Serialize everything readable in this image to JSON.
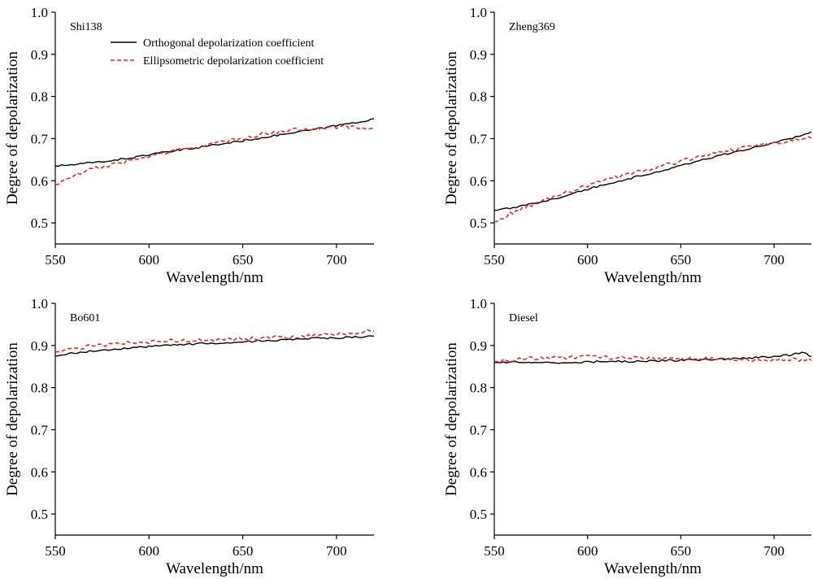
{
  "chart_data": [
    {
      "type": "line",
      "panel_label": "Shi138",
      "xlabel": "Wavelength/nm",
      "ylabel": "Degree of depolarization",
      "xlim": [
        550,
        720
      ],
      "ylim": [
        0.45,
        1.0
      ],
      "xticks": [
        550,
        600,
        650,
        700
      ],
      "yticks": [
        0.5,
        0.6,
        0.7,
        0.8,
        0.9,
        1.0
      ],
      "ytick_labels": [
        "0.5",
        "0.6",
        "0.7",
        "0.8",
        "0.9",
        "1.0"
      ],
      "legend": {
        "placement": "top-left",
        "entries": [
          "Orthogonal depolarization coefficient",
          "Ellipsometric depolarization coefficient"
        ]
      },
      "series": [
        {
          "name": "Orthogonal depolarization coefficient",
          "color": "#000000",
          "style": "solid",
          "x": [
            550,
            560,
            570,
            580,
            590,
            600,
            610,
            620,
            630,
            640,
            650,
            660,
            670,
            680,
            690,
            700,
            710,
            720
          ],
          "y": [
            0.635,
            0.638,
            0.643,
            0.648,
            0.654,
            0.662,
            0.668,
            0.675,
            0.682,
            0.688,
            0.695,
            0.702,
            0.709,
            0.716,
            0.723,
            0.731,
            0.738,
            0.747
          ]
        },
        {
          "name": "Ellipsometric depolarization coefficient",
          "color": "#e8282b",
          "style": "dashed",
          "x": [
            550,
            560,
            570,
            580,
            590,
            600,
            610,
            620,
            630,
            640,
            650,
            660,
            670,
            680,
            690,
            700,
            710,
            720
          ],
          "y": [
            0.59,
            0.612,
            0.628,
            0.638,
            0.648,
            0.658,
            0.667,
            0.676,
            0.684,
            0.692,
            0.701,
            0.71,
            0.717,
            0.722,
            0.726,
            0.728,
            0.727,
            0.725
          ]
        }
      ]
    },
    {
      "type": "line",
      "panel_label": "Zheng369",
      "xlabel": "Wavelength/nm",
      "ylabel": "Degree of depolarization",
      "xlim": [
        550,
        720
      ],
      "ylim": [
        0.45,
        1.0
      ],
      "xticks": [
        550,
        600,
        650,
        700
      ],
      "yticks": [
        0.5,
        0.6,
        0.7,
        0.8,
        0.9,
        1.0
      ],
      "ytick_labels": [
        "0.5",
        "0.6",
        "0.7",
        "0.8",
        "0.9",
        "1.0"
      ],
      "series": [
        {
          "name": "Orthogonal depolarization coefficient",
          "color": "#000000",
          "style": "solid",
          "x": [
            550,
            560,
            570,
            580,
            590,
            600,
            610,
            620,
            630,
            640,
            650,
            660,
            670,
            680,
            690,
            700,
            710,
            720
          ],
          "y": [
            0.53,
            0.535,
            0.545,
            0.555,
            0.567,
            0.58,
            0.592,
            0.603,
            0.613,
            0.624,
            0.636,
            0.648,
            0.659,
            0.669,
            0.679,
            0.69,
            0.702,
            0.716
          ]
        },
        {
          "name": "Ellipsometric depolarization coefficient",
          "color": "#e8282b",
          "style": "dashed",
          "x": [
            550,
            560,
            570,
            580,
            590,
            600,
            610,
            620,
            630,
            640,
            650,
            660,
            670,
            680,
            690,
            700,
            710,
            720
          ],
          "y": [
            0.502,
            0.525,
            0.543,
            0.558,
            0.573,
            0.588,
            0.601,
            0.613,
            0.624,
            0.635,
            0.647,
            0.658,
            0.667,
            0.675,
            0.683,
            0.69,
            0.696,
            0.702
          ]
        }
      ]
    },
    {
      "type": "line",
      "panel_label": "Bo601",
      "xlabel": "Wavelength/nm",
      "ylabel": "Degree of depolarization",
      "xlim": [
        550,
        720
      ],
      "ylim": [
        0.45,
        1.0
      ],
      "xticks": [
        550,
        600,
        650,
        700
      ],
      "yticks": [
        0.5,
        0.6,
        0.7,
        0.8,
        0.9,
        1.0
      ],
      "ytick_labels": [
        "0.5",
        "0.6",
        "0.7",
        "0.8",
        "0.9",
        "1.0"
      ],
      "series": [
        {
          "name": "Orthogonal depolarization coefficient",
          "color": "#000000",
          "style": "solid",
          "x": [
            550,
            560,
            570,
            580,
            590,
            600,
            610,
            620,
            630,
            640,
            650,
            660,
            670,
            680,
            690,
            700,
            710,
            720
          ],
          "y": [
            0.875,
            0.882,
            0.887,
            0.891,
            0.894,
            0.897,
            0.9,
            0.903,
            0.905,
            0.907,
            0.909,
            0.911,
            0.913,
            0.915,
            0.917,
            0.918,
            0.92,
            0.922
          ]
        },
        {
          "name": "Ellipsometric depolarization coefficient",
          "color": "#e8282b",
          "style": "dashed",
          "x": [
            550,
            560,
            570,
            580,
            590,
            600,
            610,
            620,
            630,
            640,
            650,
            660,
            670,
            680,
            690,
            700,
            710,
            720
          ],
          "y": [
            0.885,
            0.893,
            0.899,
            0.903,
            0.906,
            0.909,
            0.911,
            0.912,
            0.913,
            0.914,
            0.915,
            0.917,
            0.919,
            0.921,
            0.924,
            0.927,
            0.93,
            0.935
          ]
        }
      ]
    },
    {
      "type": "line",
      "panel_label": "Diesel",
      "xlabel": "Wavelength/nm",
      "ylabel": "Degree of depolarization",
      "xlim": [
        550,
        720
      ],
      "ylim": [
        0.45,
        1.0
      ],
      "xticks": [
        550,
        600,
        650,
        700
      ],
      "yticks": [
        0.5,
        0.6,
        0.7,
        0.8,
        0.9,
        1.0
      ],
      "ytick_labels": [
        "0.5",
        "0.6",
        "0.7",
        "0.8",
        "0.9",
        "1.0"
      ],
      "series": [
        {
          "name": "Orthogonal depolarization coefficient",
          "color": "#000000",
          "style": "solid",
          "x": [
            550,
            560,
            570,
            580,
            590,
            600,
            610,
            620,
            630,
            640,
            650,
            660,
            670,
            680,
            690,
            700,
            710,
            715,
            720
          ],
          "y": [
            0.86,
            0.86,
            0.858,
            0.859,
            0.86,
            0.861,
            0.862,
            0.862,
            0.863,
            0.864,
            0.865,
            0.866,
            0.867,
            0.869,
            0.871,
            0.873,
            0.878,
            0.884,
            0.874
          ]
        },
        {
          "name": "Ellipsometric depolarization coefficient",
          "color": "#e8282b",
          "style": "dashed",
          "x": [
            550,
            560,
            570,
            580,
            590,
            600,
            610,
            620,
            630,
            640,
            650,
            660,
            670,
            680,
            690,
            700,
            710,
            720
          ],
          "y": [
            0.862,
            0.866,
            0.869,
            0.871,
            0.872,
            0.873,
            0.872,
            0.871,
            0.87,
            0.869,
            0.868,
            0.868,
            0.867,
            0.867,
            0.867,
            0.866,
            0.866,
            0.865
          ]
        }
      ]
    }
  ]
}
